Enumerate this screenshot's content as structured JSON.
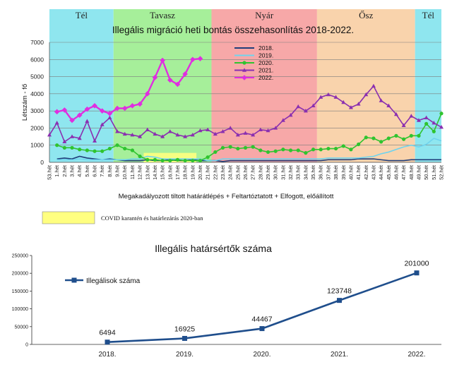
{
  "chart_data": [
    {
      "type": "line",
      "title": "Illegális migráció heti bontás összehasonlítás 2018-2022.",
      "xlabel": "Megakadályozott tiltott határátlépés + Feltartóztatott + Elfogott, előállított",
      "ylabel": "Létszám - fő",
      "ylim": [
        0,
        7000
      ],
      "yticks": [
        0,
        1000,
        2000,
        3000,
        4000,
        5000,
        6000,
        7000
      ],
      "grid": true,
      "legend_position": "top-center",
      "categories": [
        "53.hét",
        "1.hét",
        "2.hét",
        "3.hét",
        "4.hét",
        "5.hét",
        "6.hét",
        "7.hét",
        "8.hét",
        "9.hét",
        "10.hét",
        "11.hét",
        "12.hét",
        "13.hét",
        "14.hét",
        "15.hét",
        "16.hét",
        "17.hét",
        "18.hét",
        "19.hét",
        "20.hét",
        "21.hét",
        "22.hét",
        "23.hét",
        "24.hét",
        "25.hét",
        "26.hét",
        "27.hét",
        "28.hét",
        "29.hét",
        "30.hét",
        "31.hét",
        "32.hét",
        "33.hét",
        "34.hét",
        "35.hét",
        "36.hét",
        "37.hét",
        "38.hét",
        "39.hét",
        "40.hét",
        "41.hét",
        "42.hét",
        "43.hét",
        "44.hét",
        "45.hét",
        "46.hét",
        "47.hét",
        "48.hét",
        "49.hét",
        "50.hét",
        "51.hét",
        "52.hét"
      ],
      "seasons": [
        {
          "label": "Tél",
          "start": 0,
          "end": 8,
          "color": "#8fe6ef"
        },
        {
          "label": "Tavasz",
          "start": 9,
          "end": 21,
          "color": "#a6ef9a"
        },
        {
          "label": "Nyár",
          "start": 22,
          "end": 35,
          "color": "#f7a8a8"
        },
        {
          "label": "Ősz",
          "start": 36,
          "end": 48,
          "color": "#f9d3ac"
        },
        {
          "label": "Tél",
          "start": 49,
          "end": 52,
          "color": "#8fe6ef"
        }
      ],
      "series": [
        {
          "name": "2018.",
          "color": "#1f3d7a",
          "marker": "none",
          "values": [
            null,
            200,
            250,
            200,
            350,
            250,
            200,
            150,
            200,
            150,
            100,
            100,
            100,
            150,
            100,
            100,
            150,
            100,
            100,
            150,
            100,
            100,
            100,
            50,
            100,
            100,
            100,
            100,
            100,
            100,
            100,
            100,
            100,
            100,
            100,
            100,
            100,
            150,
            150,
            150,
            150,
            200,
            200,
            200,
            150,
            100,
            100,
            100,
            150,
            150,
            150,
            150,
            150
          ]
        },
        {
          "name": "2019.",
          "color": "#6fd3ee",
          "marker": "none",
          "values": [
            null,
            150,
            150,
            150,
            200,
            150,
            150,
            150,
            150,
            150,
            150,
            200,
            200,
            350,
            300,
            200,
            200,
            200,
            200,
            200,
            200,
            100,
            100,
            200,
            200,
            200,
            200,
            200,
            200,
            200,
            200,
            200,
            200,
            200,
            200,
            200,
            200,
            250,
            250,
            250,
            250,
            250,
            300,
            350,
            500,
            600,
            750,
            900,
            1000,
            900,
            1050,
            1400,
            1250
          ]
        },
        {
          "name": "2020.",
          "color": "#2fc42f",
          "marker": "circle",
          "values": [
            null,
            1000,
            850,
            850,
            750,
            700,
            650,
            650,
            800,
            1000,
            800,
            700,
            350,
            150,
            150,
            100,
            100,
            150,
            100,
            100,
            100,
            300,
            600,
            850,
            900,
            800,
            850,
            900,
            700,
            600,
            650,
            750,
            700,
            700,
            550,
            750,
            750,
            800,
            800,
            950,
            750,
            1050,
            1450,
            1400,
            1200,
            1400,
            1550,
            1350,
            1550,
            1550,
            2250,
            1800,
            2850
          ]
        },
        {
          "name": "2021.",
          "color": "#8a2fb0",
          "marker": "triangle",
          "values": [
            1600,
            2300,
            1200,
            1500,
            1400,
            2400,
            1250,
            2200,
            2600,
            1800,
            1650,
            1600,
            1500,
            1900,
            1650,
            1500,
            1800,
            1600,
            1500,
            1600,
            1850,
            1900,
            1650,
            1800,
            2000,
            1600,
            1700,
            1600,
            1900,
            1850,
            2000,
            2450,
            2750,
            3250,
            3000,
            3300,
            3800,
            3950,
            3800,
            3500,
            3200,
            3400,
            3950,
            4450,
            3600,
            3300,
            2800,
            2150,
            2700,
            2450,
            2600,
            2300,
            2050
          ]
        },
        {
          "name": "2022.",
          "color": "#e02ee0",
          "marker": "diamond",
          "values": [
            null,
            2950,
            3050,
            2450,
            2750,
            3100,
            3300,
            3000,
            2850,
            3150,
            3150,
            3300,
            3400,
            4000,
            4950,
            5950,
            4800,
            4550,
            5150,
            6000,
            6050,
            null,
            null,
            null,
            null,
            null,
            null,
            null,
            null,
            null,
            null,
            null,
            null,
            null,
            null,
            null,
            null,
            null,
            null,
            null,
            null,
            null,
            null,
            null,
            null,
            null,
            null,
            null,
            null,
            null,
            null,
            null,
            null
          ]
        }
      ],
      "annotation": {
        "label": "COVID karantén és határlezárás 2020-ban",
        "color": "#ffff80",
        "start": 13,
        "end": 19,
        "ylim": [
          0,
          550
        ]
      }
    },
    {
      "type": "line",
      "title": "Illegális határsértők száma",
      "categories": [
        "2018.",
        "2019.",
        "2020.",
        "2021.",
        "2022."
      ],
      "series": [
        {
          "name": "Illegálisok száma",
          "color": "#1f4e8c",
          "marker": "square",
          "values": [
            6494,
            16925,
            44467,
            123748,
            201000
          ]
        }
      ],
      "data_labels": [
        "6494",
        "16925",
        "44467",
        "123748",
        "201000"
      ],
      "ylim": [
        0,
        250000
      ],
      "yticks": [
        0,
        50000,
        100000,
        150000,
        200000,
        250000
      ],
      "grid": false,
      "legend_position": "top-left"
    }
  ]
}
